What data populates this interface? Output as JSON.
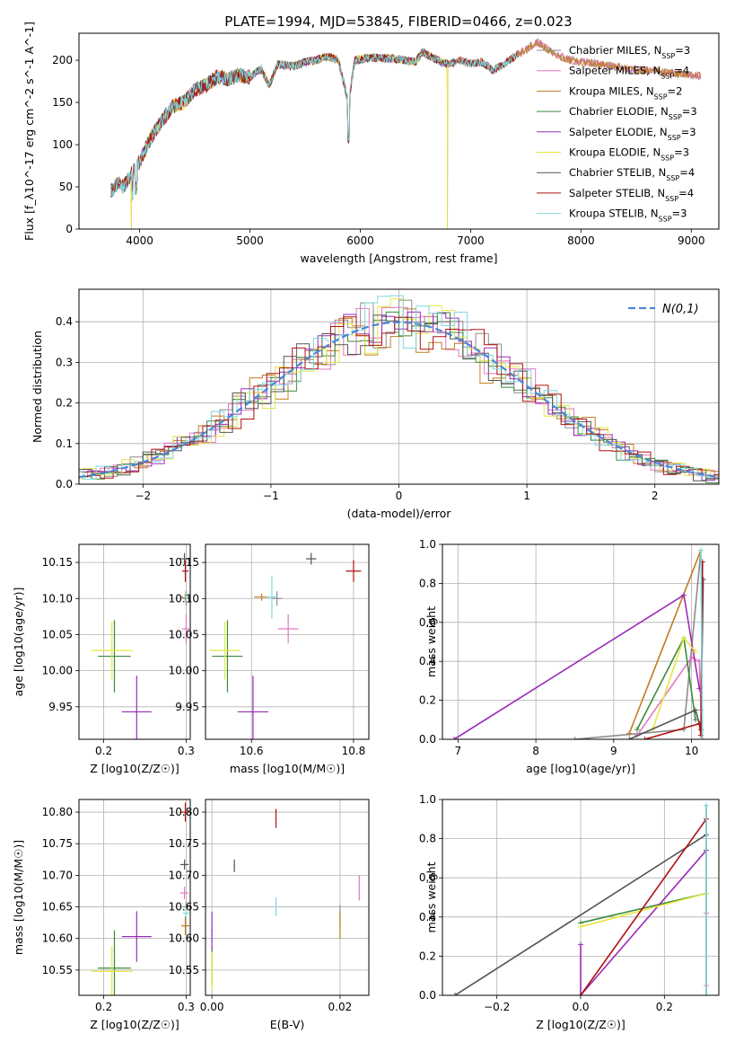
{
  "figure": {
    "title": "PLATE=1994, MJD=53845, FIBERID=0466, z=0.023"
  },
  "colors": {
    "Chabrier MILES": "#8c8c8c",
    "Salpeter MILES": "#e377c2",
    "Kroupa MILES": "#c07c20",
    "Chabrier ELODIE": "#3b8a3b",
    "Salpeter ELODIE": "#9b2bb5",
    "Kroupa ELODIE": "#e6e640",
    "Chabrier STELIB": "#555555",
    "Salpeter STELIB": "#b01010",
    "Kroupa STELIB": "#7fd8e0",
    "gauss": "#4a86d8"
  },
  "chart_data": [
    {
      "type": "line",
      "panel": "spectrum",
      "title": "PLATE=1994, MJD=53845, FIBERID=0466, z=0.023",
      "xlabel": "wavelength [Angstrom, rest frame]",
      "ylabel": "Flux [f_λ10^-17 erg cm^-2 s^-1 A^-1]",
      "xlim": [
        3450,
        9250
      ],
      "ylim": [
        0,
        232
      ],
      "xticks": [
        4000,
        5000,
        6000,
        7000,
        8000,
        9000
      ],
      "yticks": [
        0,
        50,
        100,
        150,
        200
      ],
      "legend_position": "top-right",
      "spectrum_anchor_points": {
        "x": [
          3750,
          3800,
          3850,
          3900,
          3950,
          4000,
          4100,
          4200,
          4300,
          4400,
          4500,
          4600,
          4700,
          4800,
          4900,
          5000,
          5100,
          5175,
          5250,
          5400,
          5500,
          5600,
          5700,
          5800,
          5893,
          5950,
          6100,
          6300,
          6500,
          6563,
          6700,
          6800,
          6900,
          7000,
          7100,
          7200,
          7300,
          7400,
          7500,
          7600,
          7700,
          7800,
          7900,
          8000,
          8200,
          8400,
          8600,
          8800,
          9000
        ],
        "y": [
          45,
          55,
          50,
          60,
          70,
          80,
          108,
          128,
          145,
          150,
          165,
          170,
          180,
          178,
          182,
          180,
          190,
          170,
          195,
          193,
          198,
          200,
          205,
          200,
          150,
          200,
          203,
          202,
          198,
          210,
          200,
          195,
          200,
          196,
          198,
          188,
          195,
          205,
          212,
          222,
          213,
          205,
          200,
          198,
          195,
          190,
          188,
          185,
          182
        ]
      },
      "series": [
        {
          "name": "Chabrier MILES",
          "n_ssp": 3
        },
        {
          "name": "Salpeter MILES",
          "n_ssp": 4
        },
        {
          "name": "Kroupa MILES",
          "n_ssp": 2
        },
        {
          "name": "Chabrier ELODIE",
          "n_ssp": 3
        },
        {
          "name": "Salpeter ELODIE",
          "n_ssp": 3
        },
        {
          "name": "Kroupa ELODIE",
          "n_ssp": 3
        },
        {
          "name": "Chabrier STELIB",
          "n_ssp": 4
        },
        {
          "name": "Salpeter STELIB",
          "n_ssp": 4
        },
        {
          "name": "Kroupa STELIB",
          "n_ssp": 3
        }
      ]
    },
    {
      "type": "step",
      "panel": "residuals",
      "xlabel": "(data-model)/error",
      "ylabel": "Normed distribution",
      "xlim": [
        -2.5,
        2.5
      ],
      "ylim": [
        0,
        0.48
      ],
      "xticks": [
        -2,
        -1,
        0,
        1,
        2
      ],
      "yticks": [
        0.0,
        0.1,
        0.2,
        0.3,
        0.4
      ],
      "grid": true,
      "legend_position": "top-right",
      "gaussian": {
        "name": "N(0,1)",
        "mean": 0,
        "sigma": 1
      },
      "bin_width": 0.1
    },
    {
      "type": "scatter",
      "panel": "Z-age",
      "xlabel": "Z [log10(Z/Z☉)]",
      "ylabel": "age  [log10(age/yr)]",
      "xlim": [
        0.17,
        0.305
      ],
      "ylim": [
        9.905,
        10.175
      ],
      "xticks": [
        0.2,
        0.3
      ],
      "yticks": [
        9.95,
        10.0,
        10.05,
        10.1,
        10.15
      ],
      "grid": true,
      "points": [
        {
          "model": "Chabrier MILES",
          "x": 0.3,
          "y": 10.1,
          "xerr": 0.005,
          "yerr": 0.01
        },
        {
          "model": "Salpeter MILES",
          "x": 0.3,
          "y": 10.058,
          "xerr": 0.005,
          "yerr": 0.02
        },
        {
          "model": "Kroupa MILES",
          "x": 0.299,
          "y": 10.102,
          "xerr": 0.005,
          "yerr": 0.005
        },
        {
          "model": "Chabrier ELODIE",
          "x": 0.213,
          "y": 10.02,
          "xerr": 0.02,
          "yerr": 0.05
        },
        {
          "model": "Salpeter ELODIE",
          "x": 0.24,
          "y": 9.943,
          "xerr": 0.018,
          "yerr": 0.05
        },
        {
          "model": "Kroupa ELODIE",
          "x": 0.21,
          "y": 10.028,
          "xerr": 0.025,
          "yerr": 0.04
        },
        {
          "model": "Chabrier STELIB",
          "x": 0.298,
          "y": 10.155,
          "xerr": 0.005,
          "yerr": 0.008
        },
        {
          "model": "Salpeter STELIB",
          "x": 0.299,
          "y": 10.138,
          "xerr": 0.004,
          "yerr": 0.015
        },
        {
          "model": "Kroupa STELIB",
          "x": 0.3,
          "y": 10.102,
          "xerr": 0.004,
          "yerr": 0.006
        }
      ]
    },
    {
      "type": "scatter",
      "panel": "mass-age",
      "xlabel": "mass [log10(M/M☉)]",
      "ylabel": "",
      "xlim": [
        10.51,
        10.83
      ],
      "ylim": [
        9.905,
        10.175
      ],
      "xticks": [
        10.6,
        10.8
      ],
      "yticks": [
        9.95,
        10.0,
        10.05,
        10.1,
        10.15
      ],
      "grid": true,
      "points": [
        {
          "model": "Chabrier MILES",
          "x": 10.65,
          "y": 10.1,
          "xerr": 0.01,
          "yerr": 0.01
        },
        {
          "model": "Salpeter MILES",
          "x": 10.672,
          "y": 10.058,
          "xerr": 0.02,
          "yerr": 0.02
        },
        {
          "model": "Kroupa MILES",
          "x": 10.62,
          "y": 10.102,
          "xerr": 0.015,
          "yerr": 0.005
        },
        {
          "model": "Chabrier ELODIE",
          "x": 10.553,
          "y": 10.02,
          "xerr": 0.03,
          "yerr": 0.05
        },
        {
          "model": "Salpeter ELODIE",
          "x": 10.603,
          "y": 9.943,
          "xerr": 0.03,
          "yerr": 0.05
        },
        {
          "model": "Kroupa ELODIE",
          "x": 10.548,
          "y": 10.028,
          "xerr": 0.03,
          "yerr": 0.04
        },
        {
          "model": "Chabrier STELIB",
          "x": 10.717,
          "y": 10.155,
          "xerr": 0.01,
          "yerr": 0.008
        },
        {
          "model": "Salpeter STELIB",
          "x": 10.8,
          "y": 10.138,
          "xerr": 0.015,
          "yerr": 0.015
        },
        {
          "model": "Kroupa STELIB",
          "x": 10.64,
          "y": 10.102,
          "xerr": 0.01,
          "yerr": 0.03
        }
      ]
    },
    {
      "type": "line",
      "panel": "age-weight",
      "xlabel": "age  [log10(age/yr)]",
      "ylabel": "mass weight",
      "xlim": [
        6.8,
        10.35
      ],
      "ylim": [
        0,
        1.0
      ],
      "xticks": [
        7,
        8,
        9,
        10
      ],
      "yticks": [
        0.0,
        0.2,
        0.4,
        0.6,
        0.8,
        1.0
      ],
      "grid": true,
      "series": [
        {
          "name": "Chabrier MILES",
          "x": [
            8.5,
            9.9,
            10.12
          ],
          "y": [
            0.0,
            0.05,
            0.97
          ]
        },
        {
          "name": "Salpeter MILES",
          "x": [
            9.3,
            10.0,
            10.1,
            10.12
          ],
          "y": [
            0.02,
            0.42,
            0.4,
            0.15
          ]
        },
        {
          "name": "Kroupa MILES",
          "x": [
            9.2,
            10.12
          ],
          "y": [
            0.03,
            0.97
          ]
        },
        {
          "name": "Chabrier ELODIE",
          "x": [
            9.3,
            9.9,
            10.05
          ],
          "y": [
            0.05,
            0.52,
            0.1
          ]
        },
        {
          "name": "Salpeter ELODIE",
          "x": [
            6.95,
            9.9,
            10.1
          ],
          "y": [
            0.0,
            0.74,
            0.26
          ]
        },
        {
          "name": "Kroupa ELODIE",
          "x": [
            9.5,
            9.9,
            10.05
          ],
          "y": [
            0.05,
            0.52,
            0.45
          ]
        },
        {
          "name": "Chabrier STELIB",
          "x": [
            9.2,
            10.05,
            10.12,
            10.15
          ],
          "y": [
            0.0,
            0.15,
            0.05,
            0.82
          ]
        },
        {
          "name": "Salpeter STELIB",
          "x": [
            9.4,
            10.1,
            10.12,
            10.14
          ],
          "y": [
            0.0,
            0.08,
            0.02,
            0.91
          ]
        },
        {
          "name": "Kroupa STELIB",
          "x": [
            10.12,
            10.14
          ],
          "y": [
            0.97,
            0.0
          ]
        }
      ]
    },
    {
      "type": "scatter",
      "panel": "Z-mass",
      "xlabel": "Z [log10(Z/Z☉)]",
      "ylabel": "mass [log10(M/M☉)]",
      "xlim": [
        0.17,
        0.305
      ],
      "ylim": [
        10.51,
        10.82
      ],
      "xticks": [
        0.2,
        0.3
      ],
      "yticks": [
        10.55,
        10.6,
        10.65,
        10.7,
        10.75,
        10.8
      ],
      "grid": true,
      "points": [
        {
          "model": "Chabrier MILES",
          "x": 0.3,
          "y": 10.65,
          "xerr": 0.005,
          "yerr": 0.008
        },
        {
          "model": "Salpeter MILES",
          "x": 0.298,
          "y": 10.672,
          "xerr": 0.005,
          "yerr": 0.01
        },
        {
          "model": "Kroupa MILES",
          "x": 0.299,
          "y": 10.62,
          "xerr": 0.005,
          "yerr": 0.015
        },
        {
          "model": "Chabrier ELODIE",
          "x": 0.213,
          "y": 10.553,
          "xerr": 0.02,
          "yerr": 0.06
        },
        {
          "model": "Salpeter ELODIE",
          "x": 0.24,
          "y": 10.603,
          "xerr": 0.018,
          "yerr": 0.04
        },
        {
          "model": "Kroupa ELODIE",
          "x": 0.21,
          "y": 10.548,
          "xerr": 0.025,
          "yerr": 0.04
        },
        {
          "model": "Chabrier STELIB",
          "x": 0.298,
          "y": 10.717,
          "xerr": 0.005,
          "yerr": 0.008
        },
        {
          "model": "Salpeter STELIB",
          "x": 0.299,
          "y": 10.8,
          "xerr": 0.005,
          "yerr": 0.015
        },
        {
          "model": "Kroupa STELIB",
          "x": 0.3,
          "y": 10.64,
          "xerr": 0.004,
          "yerr": 0.01
        }
      ]
    },
    {
      "type": "scatter",
      "panel": "EBV-mass",
      "xlabel": "E(B-V)",
      "ylabel": "",
      "xlim": [
        -0.001,
        0.0245
      ],
      "ylim": [
        10.51,
        10.82
      ],
      "xticks": [
        0.0,
        0.02
      ],
      "yticks": [
        10.55,
        10.6,
        10.65,
        10.7,
        10.75,
        10.8
      ],
      "grid": true,
      "points": [
        {
          "model": "Chabrier MILES",
          "x": 0.02,
          "y": 10.638,
          "xerr": 0.0,
          "yerr": 0.015
        },
        {
          "model": "Salpeter MILES",
          "x": 0.023,
          "y": 10.68,
          "xerr": 0.0,
          "yerr": 0.02
        },
        {
          "model": "Kroupa MILES",
          "x": 0.02,
          "y": 10.62,
          "xerr": 0.0,
          "yerr": 0.02
        },
        {
          "model": "Chabrier ELODIE",
          "x": 0.0,
          "y": 10.555,
          "xerr": 0.0,
          "yerr": 0.03
        },
        {
          "model": "Salpeter ELODIE",
          "x": 0.0,
          "y": 10.612,
          "xerr": 0.0,
          "yerr": 0.03
        },
        {
          "model": "Kroupa ELODIE",
          "x": 0.0,
          "y": 10.548,
          "xerr": 0.0,
          "yerr": 0.03
        },
        {
          "model": "Chabrier STELIB",
          "x": 0.0035,
          "y": 10.715,
          "xerr": 0.0,
          "yerr": 0.01
        },
        {
          "model": "Salpeter STELIB",
          "x": 0.01,
          "y": 10.79,
          "xerr": 0.0,
          "yerr": 0.015
        },
        {
          "model": "Kroupa STELIB",
          "x": 0.01,
          "y": 10.65,
          "xerr": 0.0,
          "yerr": 0.015
        }
      ]
    },
    {
      "type": "line",
      "panel": "Z-weight",
      "xlabel": "Z [log10(Z/Z☉)]",
      "ylabel": "mass weight",
      "xlim": [
        -0.33,
        0.33
      ],
      "ylim": [
        0,
        1.0
      ],
      "xticks": [
        -0.2,
        0.0,
        0.2
      ],
      "yticks": [
        0.0,
        0.2,
        0.4,
        0.6,
        0.8,
        1.0
      ],
      "grid": true,
      "series": [
        {
          "name": "Chabrier MILES",
          "x": [
            0.3,
            0.3
          ],
          "y": [
            0.0,
            0.97
          ]
        },
        {
          "name": "Salpeter MILES",
          "x": [
            0.3,
            0.3
          ],
          "y": [
            0.05,
            0.42
          ]
        },
        {
          "name": "Kroupa MILES",
          "x": [
            0.3,
            0.3
          ],
          "y": [
            0.0,
            0.97
          ]
        },
        {
          "name": "Chabrier ELODIE",
          "x": [
            0.0,
            0.3
          ],
          "y": [
            0.37,
            0.52
          ]
        },
        {
          "name": "Salpeter ELODIE",
          "x": [
            0.0,
            0.0,
            0.3
          ],
          "y": [
            0.26,
            0.0,
            0.74
          ]
        },
        {
          "name": "Kroupa ELODIE",
          "x": [
            0.0,
            0.3
          ],
          "y": [
            0.35,
            0.52
          ]
        },
        {
          "name": "Chabrier STELIB",
          "x": [
            -0.3,
            0.3
          ],
          "y": [
            0.0,
            0.82
          ]
        },
        {
          "name": "Salpeter STELIB",
          "x": [
            0.0,
            0.3
          ],
          "y": [
            0.0,
            0.9
          ]
        },
        {
          "name": "Kroupa STELIB",
          "x": [
            0.3,
            0.3
          ],
          "y": [
            0.0,
            0.97
          ]
        }
      ]
    }
  ]
}
